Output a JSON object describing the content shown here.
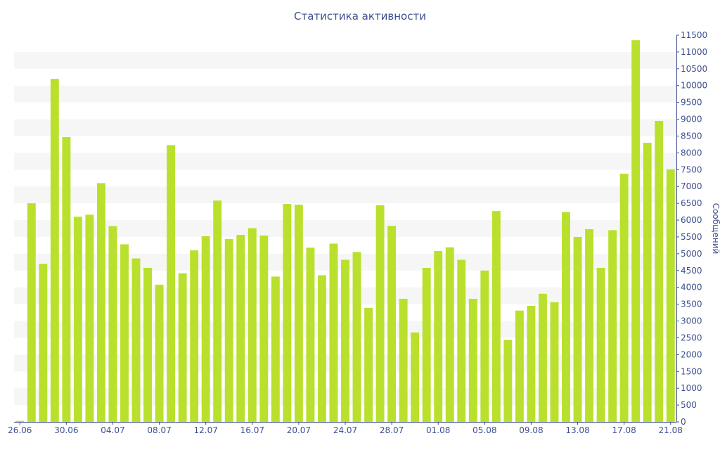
{
  "chart_data": {
    "type": "bar",
    "title": "Статистика активности",
    "xlabel": "",
    "ylabel": "Сообщений",
    "ylim": [
      0,
      11500
    ],
    "ytick_step": 500,
    "y_axis_side": "right",
    "grid": "alternating horizontal bands",
    "legend": "none",
    "bar_color": "#b9e02c",
    "band_color": "#f6f6f6",
    "text_color": "#3d4f8f",
    "x_tick_labels": [
      {
        "index": 0,
        "label": "26.06"
      },
      {
        "index": 4,
        "label": "30.06"
      },
      {
        "index": 8,
        "label": "04.07"
      },
      {
        "index": 12,
        "label": "08.07"
      },
      {
        "index": 16,
        "label": "12.07"
      },
      {
        "index": 20,
        "label": "16.07"
      },
      {
        "index": 24,
        "label": "20.07"
      },
      {
        "index": 28,
        "label": "24.07"
      },
      {
        "index": 32,
        "label": "28.07"
      },
      {
        "index": 36,
        "label": "01.08"
      },
      {
        "index": 40,
        "label": "05.08"
      },
      {
        "index": 44,
        "label": "09.08"
      },
      {
        "index": 48,
        "label": "13.08"
      },
      {
        "index": 52,
        "label": "17.08"
      },
      {
        "index": 56,
        "label": "21.08"
      }
    ],
    "values": [
      30,
      6500,
      4700,
      10200,
      8470,
      6100,
      6160,
      7100,
      5820,
      5280,
      4860,
      4580,
      4080,
      8230,
      4420,
      5100,
      5520,
      6580,
      5440,
      5560,
      5760,
      5540,
      4320,
      6480,
      6460,
      5180,
      4360,
      5300,
      4820,
      5050,
      3390,
      6440,
      5830,
      3660,
      2660,
      4580,
      5080,
      5190,
      4820,
      3660,
      4500,
      6270,
      2440,
      3310,
      3450,
      3810,
      3560,
      6240,
      5500,
      5730,
      4580,
      5700,
      7380,
      11350,
      8300,
      8950,
      7510
    ]
  }
}
